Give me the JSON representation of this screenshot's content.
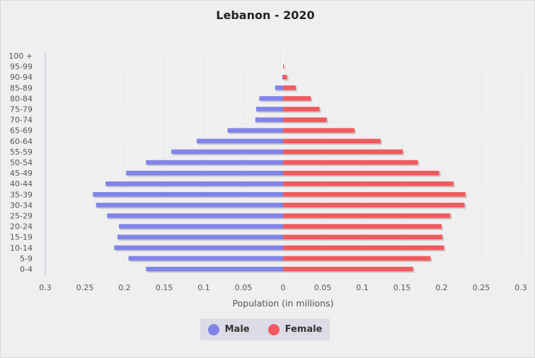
{
  "chart_data": {
    "type": "bar",
    "title": "Lebanon - 2020",
    "xlabel": "Population (in millions)",
    "ylabel": "",
    "orientation": "horizontal",
    "xlim": [
      -0.3,
      0.3
    ],
    "x_ticks": [
      "0.3",
      "0.25",
      "0.2",
      "0.15",
      "0.1",
      "0.05",
      "0",
      "0.05",
      "0.1",
      "0.15",
      "0.2",
      "0.25",
      "0.3"
    ],
    "grid": true,
    "legend_position": "bottom-center",
    "categories": [
      "100 +",
      "95-99",
      "90-94",
      "85-89",
      "80-84",
      "75-79",
      "70-74",
      "65-69",
      "60-64",
      "55-59",
      "50-54",
      "45-49",
      "40-44",
      "35-39",
      "30-34",
      "25-29",
      "20-24",
      "15-19",
      "10-14",
      "5-9",
      "0-4"
    ],
    "series": [
      {
        "name": "Male",
        "color": "#8084e8",
        "values": [
          0.0,
          0.0,
          0.001,
          0.01,
          0.03,
          0.034,
          0.035,
          0.07,
          0.109,
          0.141,
          0.173,
          0.198,
          0.224,
          0.24,
          0.236,
          0.222,
          0.207,
          0.209,
          0.213,
          0.195,
          0.173
        ]
      },
      {
        "name": "Female",
        "color": "#f05a5e",
        "values": [
          0.0,
          0.001,
          0.005,
          0.016,
          0.035,
          0.046,
          0.055,
          0.09,
          0.123,
          0.151,
          0.17,
          0.197,
          0.215,
          0.23,
          0.229,
          0.211,
          0.2,
          0.201,
          0.203,
          0.186,
          0.164
        ]
      }
    ]
  }
}
